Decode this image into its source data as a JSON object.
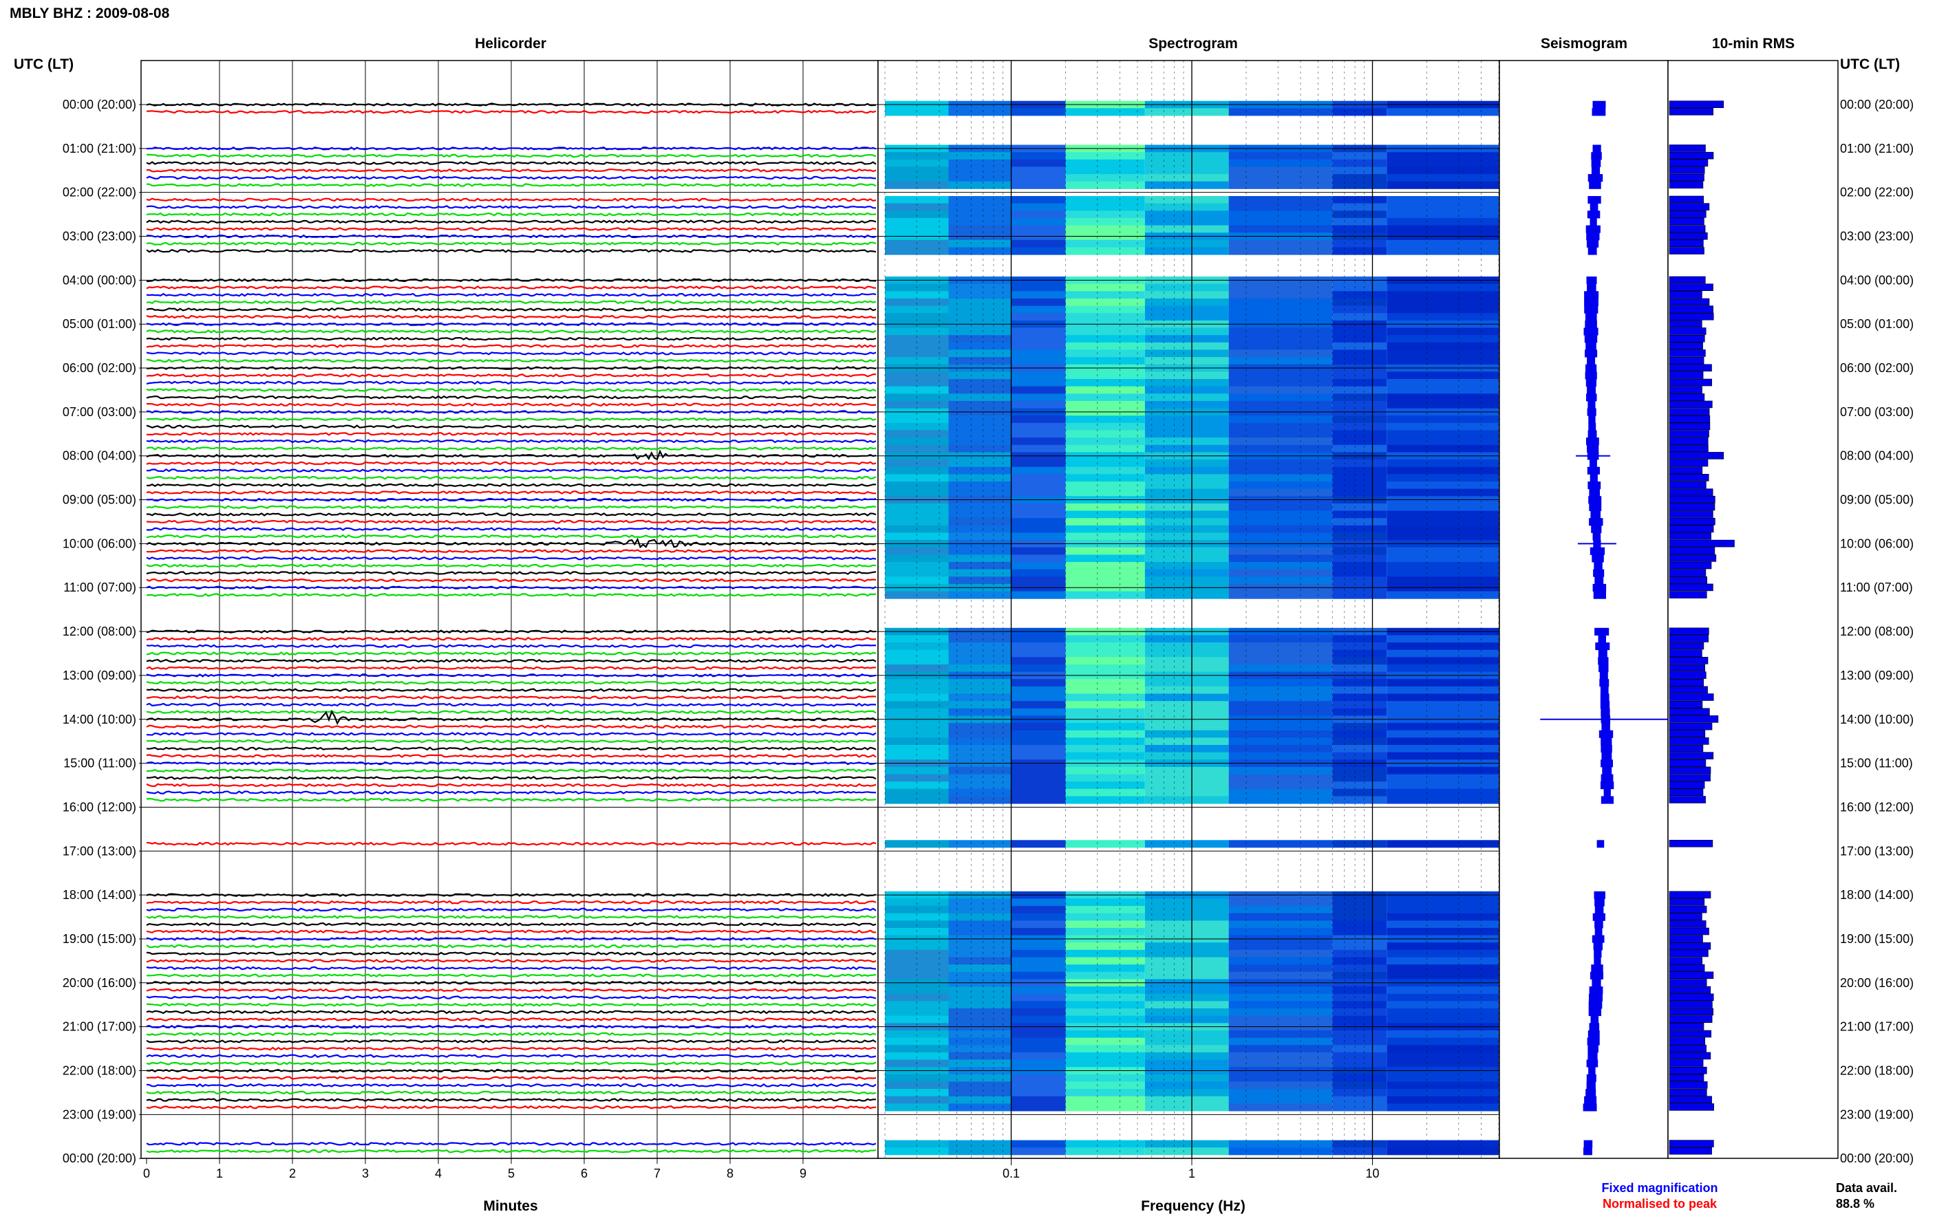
{
  "header": {
    "station_date": "MBLY BHZ : 2009-08-08"
  },
  "panels": {
    "helicorder": "Helicorder",
    "spectrogram": "Spectrogram",
    "seismogram": "Seismogram",
    "rms": "10-min RMS"
  },
  "axis_titles": {
    "time_left": "UTC (LT)",
    "time_right": "UTC (LT)",
    "minutes": "Minutes",
    "frequency": "Frequency (Hz)"
  },
  "legend": {
    "fixed": "Fixed magnification",
    "normalised": "Normalised to peak",
    "fixed_color": "#0000ff",
    "normalised_color": "#ff0000"
  },
  "data_avail": {
    "label": "Data avail.",
    "value": "88.8 %"
  },
  "colors": {
    "trace_cycle": [
      "#000000",
      "#ff0000",
      "#0000ff",
      "#00dd00"
    ],
    "spectrogram_low": "#0000cc",
    "spectrogram_mid": "#00c8e6",
    "spectrogram_high": "#66ff99",
    "bars": "#0000ee"
  },
  "chart_data": [
    {
      "type": "line",
      "title": "Helicorder",
      "xlabel": "Minutes",
      "x_ticks": [
        "0",
        "1",
        "2",
        "3",
        "4",
        "5",
        "6",
        "7",
        "8",
        "9"
      ],
      "xlim": [
        0,
        10
      ],
      "time_labels": [
        "00:00 (20:00)",
        "01:00 (21:00)",
        "02:00 (22:00)",
        "03:00 (23:00)",
        "04:00 (00:00)",
        "05:00 (01:00)",
        "06:00 (02:00)",
        "07:00 (03:00)",
        "08:00 (04:00)",
        "09:00 (05:00)",
        "10:00 (06:00)",
        "11:00 (07:00)",
        "12:00 (08:00)",
        "13:00 (09:00)",
        "14:00 (10:00)",
        "15:00 (11:00)",
        "16:00 (12:00)",
        "17:00 (13:00)",
        "18:00 (14:00)",
        "19:00 (15:00)",
        "20:00 (16:00)",
        "21:00 (17:00)",
        "22:00 (18:00)",
        "23:00 (19:00)",
        "00:00 (20:00)"
      ],
      "gap_rows": [
        2,
        3,
        4,
        5,
        12,
        21,
        22,
        23,
        68,
        69,
        70,
        71,
        96,
        97,
        98,
        99,
        100,
        102,
        103,
        104,
        105,
        106,
        107,
        138,
        139,
        140,
        141
      ],
      "events": [
        {
          "row": 48,
          "minute": 6.9,
          "label": "spike"
        },
        {
          "row": 60,
          "minute": 6.9,
          "label": "burst"
        },
        {
          "row": 84,
          "minute": 2.5,
          "label": "spike"
        }
      ]
    },
    {
      "type": "heatmap",
      "title": "Spectrogram",
      "xlabel": "Frequency (Hz)",
      "x_scale": "log",
      "x_ticks": [
        "0.1",
        "1",
        "10"
      ],
      "xlim": [
        0.02,
        50
      ],
      "rows": 144
    },
    {
      "type": "line",
      "title": "Seismogram",
      "events": [
        {
          "row": 48,
          "label": "spike"
        },
        {
          "row": 60,
          "label": "spike"
        },
        {
          "row": 84,
          "label": "spike"
        }
      ]
    },
    {
      "type": "bar",
      "title": "10-min RMS",
      "rows": 144,
      "peaks": [
        {
          "row": 0,
          "value": 1.0
        },
        {
          "row": 48,
          "value": 1.0
        },
        {
          "row": 60,
          "value": 1.2
        },
        {
          "row": 84,
          "value": 0.9
        }
      ]
    }
  ]
}
